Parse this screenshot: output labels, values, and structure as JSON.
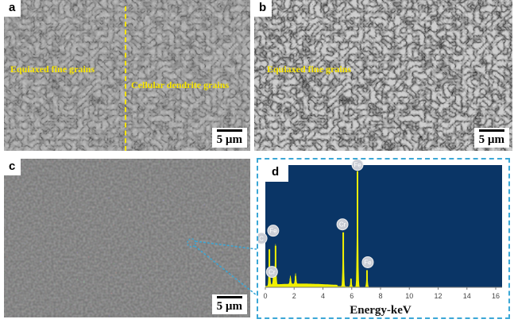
{
  "panels": {
    "a": {
      "label": "a",
      "left_text": "Equiaxed fine grains",
      "right_text": "Cellular dendrite grains",
      "scale": "5 µm"
    },
    "b": {
      "label": "b",
      "text": "Equiaxed fine grains",
      "scale": "5 µm"
    },
    "c": {
      "label": "c",
      "scale": "5 µm"
    },
    "d": {
      "label": "d"
    }
  },
  "colors": {
    "annotation": "#f5e300",
    "plot_bg": "#0a3566",
    "spectrum": "#f0f000",
    "callout": "#3ba7d6"
  },
  "chart_data": {
    "type": "line",
    "title": "",
    "xlabel": "Energy-keV",
    "ylabel": "",
    "xlim": [
      0,
      16.5
    ],
    "xticks": [
      "0",
      "2",
      "4",
      "6",
      "8",
      "10",
      "12",
      "14",
      "16"
    ],
    "grid": false,
    "peaks": [
      {
        "element": "C",
        "energy": 0.28,
        "intensity": 0.31
      },
      {
        "element": "Cr",
        "energy": 0.57,
        "intensity": 0.1
      },
      {
        "element": "Fe",
        "energy": 0.71,
        "intensity": 0.34
      },
      {
        "element": "",
        "energy": 1.74,
        "intensity": 0.07
      },
      {
        "element": "",
        "energy": 2.1,
        "intensity": 0.09
      },
      {
        "element": "Cr",
        "energy": 5.41,
        "intensity": 0.45
      },
      {
        "element": "",
        "energy": 5.95,
        "intensity": 0.07
      },
      {
        "element": "Fe",
        "energy": 6.4,
        "intensity": 0.95
      },
      {
        "element": "Fe",
        "energy": 7.06,
        "intensity": 0.14
      }
    ],
    "peak_labels": [
      {
        "text": "C",
        "energy": 0.28,
        "intensity": 0.31
      },
      {
        "text": "Fe",
        "energy": 0.71,
        "intensity": 0.34
      },
      {
        "text": "Cr",
        "energy": 0.57,
        "intensity": 0.1
      },
      {
        "text": "Cr",
        "energy": 5.41,
        "intensity": 0.45
      },
      {
        "text": "Fe",
        "energy": 6.4,
        "intensity": 0.95
      },
      {
        "text": "Fe",
        "energy": 7.06,
        "intensity": 0.14
      }
    ]
  }
}
